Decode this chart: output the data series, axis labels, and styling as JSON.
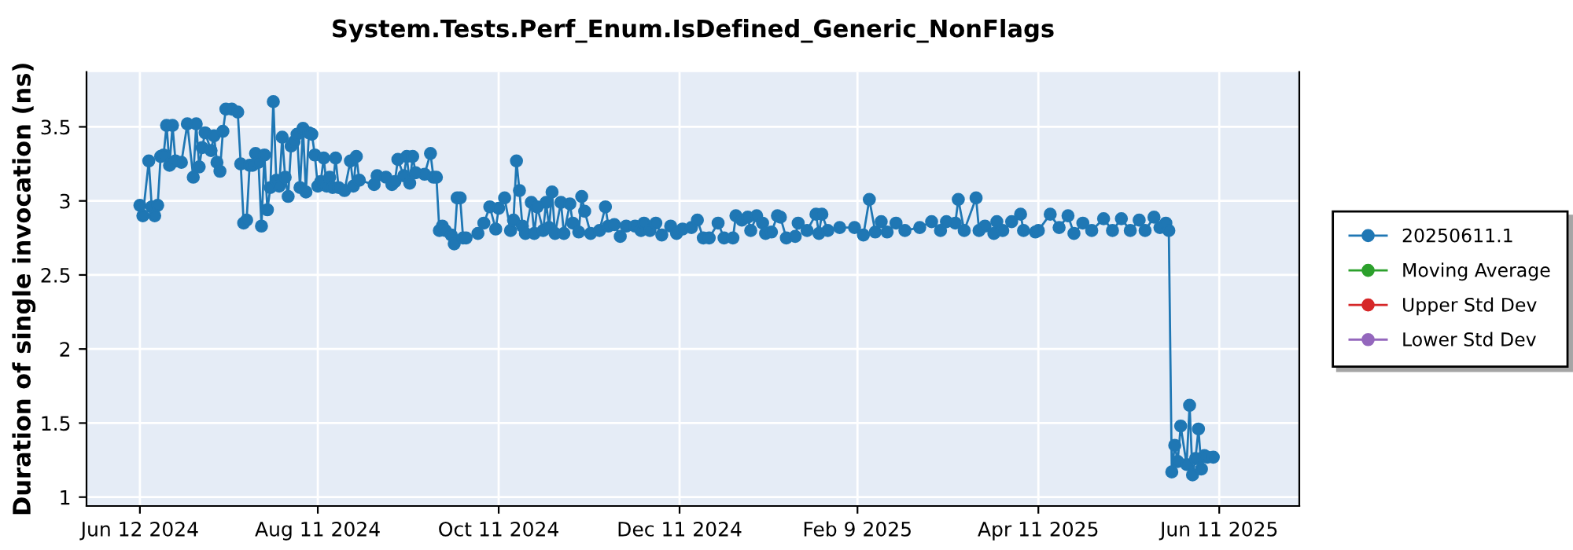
{
  "chart_data": {
    "type": "line",
    "title": "System.Tests.Perf_Enum.IsDefined_Generic_NonFlags",
    "ylabel": "Duration of single invocation (ns)",
    "xlim": [
      "2024-05-25",
      "2025-07-08"
    ],
    "ylim": [
      0.94,
      3.87
    ],
    "xticks": [
      {
        "value": "2024-06-12",
        "label": "Jun 12 2024"
      },
      {
        "value": "2024-08-11",
        "label": "Aug 11 2024"
      },
      {
        "value": "2024-10-11",
        "label": "Oct 11 2024"
      },
      {
        "value": "2024-12-11",
        "label": "Dec 11 2024"
      },
      {
        "value": "2025-02-09",
        "label": "Feb 9 2025"
      },
      {
        "value": "2025-04-11",
        "label": "Apr 11 2025"
      },
      {
        "value": "2025-06-11",
        "label": "Jun 11 2025"
      }
    ],
    "yticks": [
      1,
      1.5,
      2,
      2.5,
      3,
      3.5
    ],
    "grid": true,
    "legend": "right",
    "marker": "circle",
    "line_style": "solid",
    "series": [
      {
        "name": "20250611.1",
        "color": "#1f77b4",
        "x": [
          "2024-06-12",
          "2024-06-13",
          "2024-06-15",
          "2024-06-16",
          "2024-06-17",
          "2024-06-18",
          "2024-06-19",
          "2024-06-20",
          "2024-06-21",
          "2024-06-22",
          "2024-06-23",
          "2024-06-24",
          "2024-06-26",
          "2024-06-28",
          "2024-06-30",
          "2024-07-01",
          "2024-07-02",
          "2024-07-03",
          "2024-07-04",
          "2024-07-06",
          "2024-07-07",
          "2024-07-08",
          "2024-07-09",
          "2024-07-10",
          "2024-07-11",
          "2024-07-13",
          "2024-07-15",
          "2024-07-16",
          "2024-07-17",
          "2024-07-18",
          "2024-07-19",
          "2024-07-20",
          "2024-07-21",
          "2024-07-22",
          "2024-07-23",
          "2024-07-24",
          "2024-07-25",
          "2024-07-26",
          "2024-07-27",
          "2024-07-28",
          "2024-07-29",
          "2024-07-30",
          "2024-07-31",
          "2024-08-01",
          "2024-08-02",
          "2024-08-03",
          "2024-08-04",
          "2024-08-05",
          "2024-08-06",
          "2024-08-07",
          "2024-08-08",
          "2024-08-09",
          "2024-08-10",
          "2024-08-11",
          "2024-08-12",
          "2024-08-13",
          "2024-08-14",
          "2024-08-15",
          "2024-08-16",
          "2024-08-17",
          "2024-08-18",
          "2024-08-20",
          "2024-08-22",
          "2024-08-23",
          "2024-08-24",
          "2024-08-25",
          "2024-08-30",
          "2024-08-31",
          "2024-09-03",
          "2024-09-05",
          "2024-09-06",
          "2024-09-07",
          "2024-09-09",
          "2024-09-10",
          "2024-09-11",
          "2024-09-12",
          "2024-09-13",
          "2024-09-16",
          "2024-09-18",
          "2024-09-19",
          "2024-09-20",
          "2024-09-21",
          "2024-09-22",
          "2024-09-23",
          "2024-09-25",
          "2024-09-26",
          "2024-09-27",
          "2024-09-28",
          "2024-09-29",
          "2024-09-30",
          "2024-10-04",
          "2024-10-06",
          "2024-10-08",
          "2024-10-10",
          "2024-10-11",
          "2024-10-13",
          "2024-10-15",
          "2024-10-16",
          "2024-10-17",
          "2024-10-18",
          "2024-10-19",
          "2024-10-20",
          "2024-10-22",
          "2024-10-23",
          "2024-10-24",
          "2024-10-26",
          "2024-10-27",
          "2024-10-28",
          "2024-10-29",
          "2024-10-30",
          "2024-11-01",
          "2024-11-02",
          "2024-11-04",
          "2024-11-05",
          "2024-11-07",
          "2024-11-08",
          "2024-11-09",
          "2024-11-11",
          "2024-11-14",
          "2024-11-16",
          "2024-11-17",
          "2024-11-19",
          "2024-11-21",
          "2024-11-23",
          "2024-11-26",
          "2024-11-28",
          "2024-11-29",
          "2024-12-01",
          "2024-12-03",
          "2024-12-05",
          "2024-12-08",
          "2024-12-10",
          "2024-12-12",
          "2024-12-15",
          "2024-12-17",
          "2024-12-19",
          "2024-12-21",
          "2024-12-24",
          "2024-12-26",
          "2024-12-29",
          "2024-12-30",
          "2025-01-01",
          "2025-01-03",
          "2025-01-04",
          "2025-01-06",
          "2025-01-08",
          "2025-01-09",
          "2025-01-11",
          "2025-01-13",
          "2025-01-14",
          "2025-01-16",
          "2025-01-19",
          "2025-01-20",
          "2025-01-23",
          "2025-01-26",
          "2025-01-27",
          "2025-01-28",
          "2025-01-30",
          "2025-02-03",
          "2025-02-08",
          "2025-02-11",
          "2025-02-13",
          "2025-02-15",
          "2025-02-17",
          "2025-02-19",
          "2025-02-22",
          "2025-02-25",
          "2025-03-02",
          "2025-03-06",
          "2025-03-09",
          "2025-03-11",
          "2025-03-14",
          "2025-03-15",
          "2025-03-17",
          "2025-03-21",
          "2025-03-22",
          "2025-03-24",
          "2025-03-27",
          "2025-03-28",
          "2025-03-30",
          "2025-04-02",
          "2025-04-05",
          "2025-04-06",
          "2025-04-10",
          "2025-04-11",
          "2025-04-15",
          "2025-04-18",
          "2025-04-21",
          "2025-04-23",
          "2025-04-26",
          "2025-04-29",
          "2025-05-03",
          "2025-05-06",
          "2025-05-09",
          "2025-05-12",
          "2025-05-15",
          "2025-05-17",
          "2025-05-20",
          "2025-05-22",
          "2025-05-24",
          "2025-05-25",
          "2025-05-26",
          "2025-05-27",
          "2025-05-28",
          "2025-05-29",
          "2025-05-31",
          "2025-06-01",
          "2025-06-02",
          "2025-06-03",
          "2025-06-04",
          "2025-06-05",
          "2025-06-06",
          "2025-06-07",
          "2025-06-09"
        ],
        "values": [
          2.97,
          2.9,
          3.27,
          2.96,
          2.9,
          2.97,
          3.3,
          3.31,
          3.51,
          3.24,
          3.51,
          3.27,
          3.26,
          3.52,
          3.16,
          3.52,
          3.23,
          3.36,
          3.46,
          3.34,
          3.44,
          3.26,
          3.2,
          3.47,
          3.62,
          3.62,
          3.6,
          3.25,
          2.85,
          2.87,
          3.24,
          3.24,
          3.32,
          3.26,
          2.83,
          3.31,
          2.94,
          3.09,
          3.67,
          3.14,
          3.1,
          3.43,
          3.16,
          3.03,
          3.37,
          3.4,
          3.45,
          3.09,
          3.49,
          3.06,
          3.46,
          3.45,
          3.31,
          3.1,
          3.13,
          3.29,
          3.1,
          3.16,
          3.09,
          3.29,
          3.09,
          3.07,
          3.27,
          3.1,
          3.3,
          3.14,
          3.11,
          3.17,
          3.16,
          3.11,
          3.13,
          3.28,
          3.17,
          3.3,
          3.12,
          3.3,
          3.19,
          3.18,
          3.32,
          3.16,
          3.16,
          2.8,
          2.83,
          2.8,
          2.77,
          2.71,
          3.02,
          3.02,
          2.75,
          2.75,
          2.78,
          2.85,
          2.96,
          2.81,
          2.95,
          3.02,
          2.8,
          2.87,
          3.27,
          3.07,
          2.83,
          2.78,
          2.99,
          2.78,
          2.96,
          2.8,
          2.99,
          2.82,
          3.06,
          2.78,
          2.99,
          2.78,
          2.98,
          2.85,
          2.79,
          3.03,
          2.93,
          2.78,
          2.8,
          2.96,
          2.83,
          2.84,
          2.76,
          2.83,
          2.83,
          2.8,
          2.85,
          2.8,
          2.85,
          2.77,
          2.83,
          2.78,
          2.81,
          2.82,
          2.87,
          2.75,
          2.75,
          2.85,
          2.75,
          2.75,
          2.9,
          2.87,
          2.89,
          2.8,
          2.9,
          2.85,
          2.78,
          2.79,
          2.9,
          2.89,
          2.75,
          2.76,
          2.85,
          2.8,
          2.91,
          2.78,
          2.91,
          2.8,
          2.82,
          2.82,
          2.77,
          3.01,
          2.79,
          2.86,
          2.79,
          2.85,
          2.8,
          2.82,
          2.86,
          2.8,
          2.86,
          2.85,
          3.01,
          2.8,
          3.02,
          2.8,
          2.83,
          2.78,
          2.86,
          2.8,
          2.86,
          2.91,
          2.8,
          2.79,
          2.8,
          2.91,
          2.82,
          2.9,
          2.78,
          2.85,
          2.8,
          2.88,
          2.8,
          2.88,
          2.8,
          2.87,
          2.8,
          2.89,
          2.82,
          2.85,
          2.8,
          1.17,
          1.35,
          1.24,
          1.48,
          1.22,
          1.62,
          1.15,
          1.26,
          1.46,
          1.19,
          1.28,
          1.27,
          1.27
        ]
      },
      {
        "name": "Moving Average",
        "color": "#2ca02c"
      },
      {
        "name": "Upper Std Dev",
        "color": "#d62728"
      },
      {
        "name": "Lower Std Dev",
        "color": "#9467bd"
      }
    ]
  }
}
